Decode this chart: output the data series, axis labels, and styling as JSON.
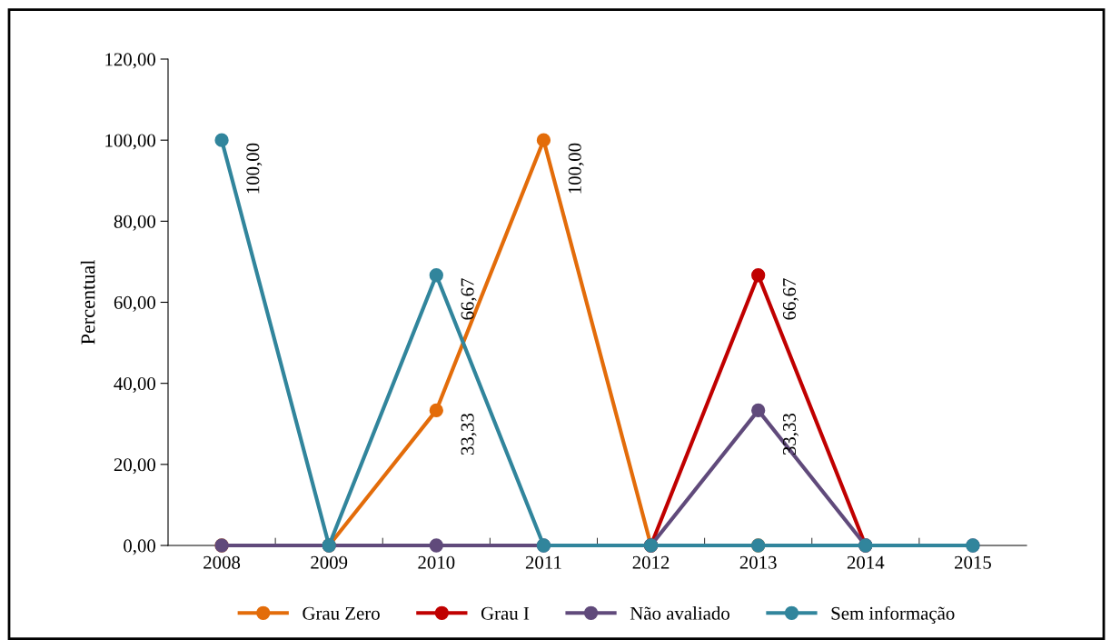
{
  "chart_data": {
    "type": "line",
    "ylabel": "Percentual",
    "categories": [
      "2008",
      "2009",
      "2010",
      "2011",
      "2012",
      "2013",
      "2014",
      "2015"
    ],
    "series": [
      {
        "name": "Grau Zero",
        "color": "#e36c0a",
        "values": [
          0,
          0,
          33.33,
          100,
          0,
          0,
          null,
          null
        ],
        "value_labels": [
          null,
          null,
          "33,33",
          "100,00",
          null,
          null,
          null,
          null
        ]
      },
      {
        "name": "Grau I",
        "color": "#c00000",
        "values": [
          null,
          null,
          null,
          null,
          0,
          66.67,
          0,
          null
        ],
        "value_labels": [
          null,
          null,
          null,
          null,
          null,
          "66,67",
          null,
          null
        ]
      },
      {
        "name": "Não avaliado",
        "color": "#604a7b",
        "values": [
          0,
          0,
          0,
          0,
          0,
          33.33,
          0,
          0
        ],
        "value_labels": [
          null,
          null,
          null,
          null,
          null,
          "33,33",
          null,
          null
        ]
      },
      {
        "name": "Sem informação",
        "color": "#31859c",
        "values": [
          100,
          0,
          66.67,
          0,
          0,
          0,
          0,
          0
        ],
        "value_labels": [
          "100,00",
          null,
          "66,67",
          null,
          null,
          null,
          null,
          null
        ]
      }
    ],
    "ylim": [
      0,
      120
    ],
    "yticks": [
      {
        "value": 0,
        "label": "0,00"
      },
      {
        "value": 20,
        "label": "20,00"
      },
      {
        "value": 40,
        "label": "40,00"
      },
      {
        "value": 60,
        "label": "60,00"
      },
      {
        "value": 80,
        "label": "80,00"
      },
      {
        "value": 100,
        "label": "100,00"
      },
      {
        "value": 120,
        "label": "120,00"
      }
    ],
    "grid": false,
    "legend": "bottom",
    "marker": "circle",
    "line_style": "solid"
  }
}
